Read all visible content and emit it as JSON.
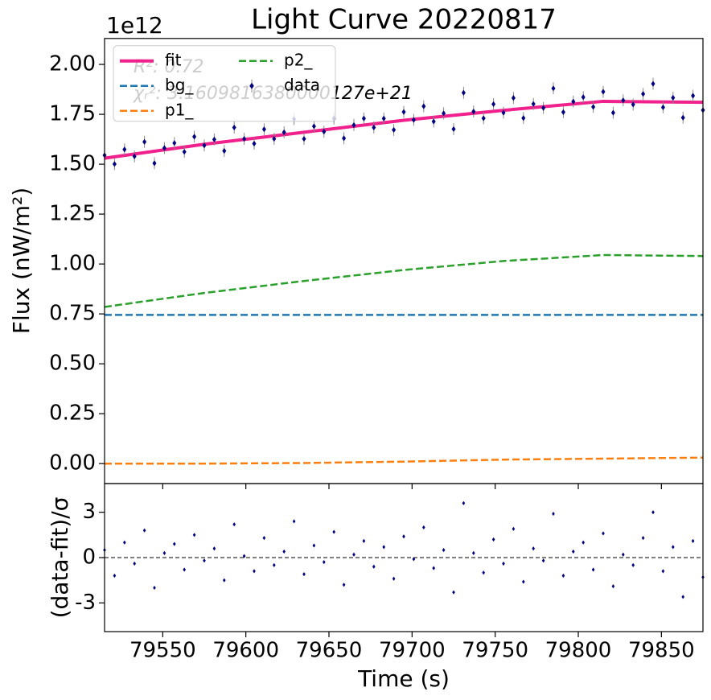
{
  "chart_data": [
    {
      "type": "line",
      "title": "Light Curve 20220817",
      "offset_label": "1e12",
      "ylabel": "Flux (nW/m²)",
      "xlim": [
        79515,
        79875
      ],
      "ylim": [
        -0.1,
        2.13
      ],
      "xticks": [
        79550,
        79600,
        79650,
        79700,
        79750,
        79800,
        79850
      ],
      "yticks": [
        {
          "value": 0,
          "label": "0.00"
        },
        {
          "value": 0.25,
          "label": "0.25"
        },
        {
          "value": 0.5,
          "label": "0.50"
        },
        {
          "value": 0.75,
          "label": "0.75"
        },
        {
          "value": 1,
          "label": "1.00"
        },
        {
          "value": 1.25,
          "label": "1.25"
        },
        {
          "value": 1.5,
          "label": "1.50"
        },
        {
          "value": 1.75,
          "label": "1.75"
        },
        {
          "value": 2,
          "label": "2.00"
        }
      ],
      "annotations": [
        "R²: 0.72",
        "χᵣ²: 3.1609816380000127e+21"
      ],
      "legend": "upper left",
      "series": [
        {
          "name": "fit",
          "color": "#f0208c",
          "style": "solid",
          "x": [
            79515,
            79575,
            79635,
            79695,
            79755,
            79815,
            79875
          ],
          "values": [
            1.53,
            1.6,
            1.66,
            1.72,
            1.77,
            1.815,
            1.81
          ]
        },
        {
          "name": "bg_",
          "color": "#1f77b4",
          "style": "dashed",
          "x": [
            79515,
            79575,
            79635,
            79695,
            79755,
            79815,
            79875
          ],
          "values": [
            0.745,
            0.745,
            0.745,
            0.745,
            0.745,
            0.745,
            0.745
          ]
        },
        {
          "name": "p1_",
          "color": "#ff7f0e",
          "style": "dashed",
          "x": [
            79515,
            79575,
            79635,
            79695,
            79755,
            79815,
            79875
          ],
          "values": [
            0,
            0,
            0.003,
            0.01,
            0.02,
            0.025,
            0.03
          ]
        },
        {
          "name": "p2_",
          "color": "#2ca02c",
          "style": "dashed",
          "x": [
            79515,
            79575,
            79635,
            79695,
            79755,
            79815,
            79875
          ],
          "values": [
            0.785,
            0.855,
            0.915,
            0.97,
            1.015,
            1.045,
            1.04
          ]
        },
        {
          "name": "data",
          "color": "#000080",
          "style": "markers",
          "x": [
            79515,
            79521,
            79527,
            79533,
            79539,
            79545,
            79551,
            79557,
            79563,
            79569,
            79575,
            79581,
            79587,
            79593,
            79599,
            79605,
            79611,
            79617,
            79623,
            79629,
            79635,
            79641,
            79647,
            79653,
            79659,
            79665,
            79671,
            79677,
            79683,
            79689,
            79695,
            79701,
            79707,
            79713,
            79719,
            79725,
            79731,
            79737,
            79743,
            79749,
            79755,
            79761,
            79767,
            79773,
            79779,
            79785,
            79791,
            79797,
            79803,
            79809,
            79815,
            79821,
            79827,
            79833,
            79839,
            79845,
            79851,
            79857,
            79863,
            79869,
            79875
          ],
          "values": [
            1.545,
            1.501,
            1.574,
            1.539,
            1.612,
            1.505,
            1.581,
            1.606,
            1.562,
            1.638,
            1.594,
            1.624,
            1.567,
            1.684,
            1.627,
            1.603,
            1.675,
            1.627,
            1.66,
            1.726,
            1.627,
            1.69,
            1.663,
            1.729,
            1.63,
            1.696,
            1.729,
            1.684,
            1.729,
            1.672,
            1.762,
            1.722,
            1.79,
            1.714,
            1.755,
            1.676,
            1.858,
            1.764,
            1.73,
            1.801,
            1.758,
            1.832,
            1.731,
            1.802,
            1.782,
            1.88,
            1.761,
            1.814,
            1.836,
            1.787,
            1.863,
            1.758,
            1.82,
            1.799,
            1.852,
            1.903,
            1.785,
            1.833,
            1.733,
            1.843,
            1.771
          ],
          "errors": [
            0.03,
            0.03,
            0.03,
            0.03,
            0.03,
            0.03,
            0.03,
            0.03,
            0.03,
            0.03,
            0.03,
            0.03,
            0.03,
            0.03,
            0.03,
            0.03,
            0.03,
            0.03,
            0.03,
            0.03,
            0.03,
            0.03,
            0.03,
            0.03,
            0.03,
            0.03,
            0.03,
            0.03,
            0.03,
            0.03,
            0.03,
            0.03,
            0.03,
            0.03,
            0.03,
            0.03,
            0.03,
            0.03,
            0.03,
            0.03,
            0.03,
            0.03,
            0.03,
            0.03,
            0.03,
            0.03,
            0.03,
            0.03,
            0.03,
            0.03,
            0.03,
            0.03,
            0.03,
            0.03,
            0.03,
            0.03,
            0.03,
            0.03,
            0.03,
            0.03,
            0.03
          ]
        }
      ]
    },
    {
      "type": "scatter",
      "xlabel": "Time (s)",
      "ylabel": "(data-fit)/σ",
      "color": "#000080",
      "xlim": [
        79515,
        79875
      ],
      "ylim": [
        -4.9,
        4.9
      ],
      "xticks": [
        79550,
        79600,
        79650,
        79700,
        79750,
        79800,
        79850
      ],
      "yticks": [
        -3,
        0,
        3
      ],
      "zero_line": 0,
      "x": [
        79515,
        79521,
        79527,
        79533,
        79539,
        79545,
        79551,
        79557,
        79563,
        79569,
        79575,
        79581,
        79587,
        79593,
        79599,
        79605,
        79611,
        79617,
        79623,
        79629,
        79635,
        79641,
        79647,
        79653,
        79659,
        79665,
        79671,
        79677,
        79683,
        79689,
        79695,
        79701,
        79707,
        79713,
        79719,
        79725,
        79731,
        79737,
        79743,
        79749,
        79755,
        79761,
        79767,
        79773,
        79779,
        79785,
        79791,
        79797,
        79803,
        79809,
        79815,
        79821,
        79827,
        79833,
        79839,
        79845,
        79851,
        79857,
        79863,
        79869,
        79875
      ],
      "values": [
        0.5,
        -1.2,
        1.0,
        -0.4,
        1.8,
        -2.0,
        0.3,
        0.9,
        -0.8,
        1.5,
        -0.2,
        0.6,
        -1.5,
        2.2,
        0.1,
        -0.9,
        1.3,
        -0.5,
        0.4,
        2.4,
        -1.1,
        0.8,
        -0.3,
        1.7,
        -1.8,
        0.2,
        1.1,
        -0.6,
        0.7,
        -1.4,
        1.4,
        -0.1,
        2.0,
        -0.7,
        0.5,
        -2.3,
        3.6,
        0.3,
        -1.0,
        1.2,
        -0.4,
        1.9,
        -1.6,
        0.6,
        -0.2,
        2.9,
        -1.2,
        0.4,
        1.0,
        -0.8,
        1.6,
        -1.9,
        0.2,
        -0.5,
        1.3,
        3.0,
        -0.9,
        0.7,
        -2.6,
        1.1,
        -1.3
      ]
    }
  ]
}
